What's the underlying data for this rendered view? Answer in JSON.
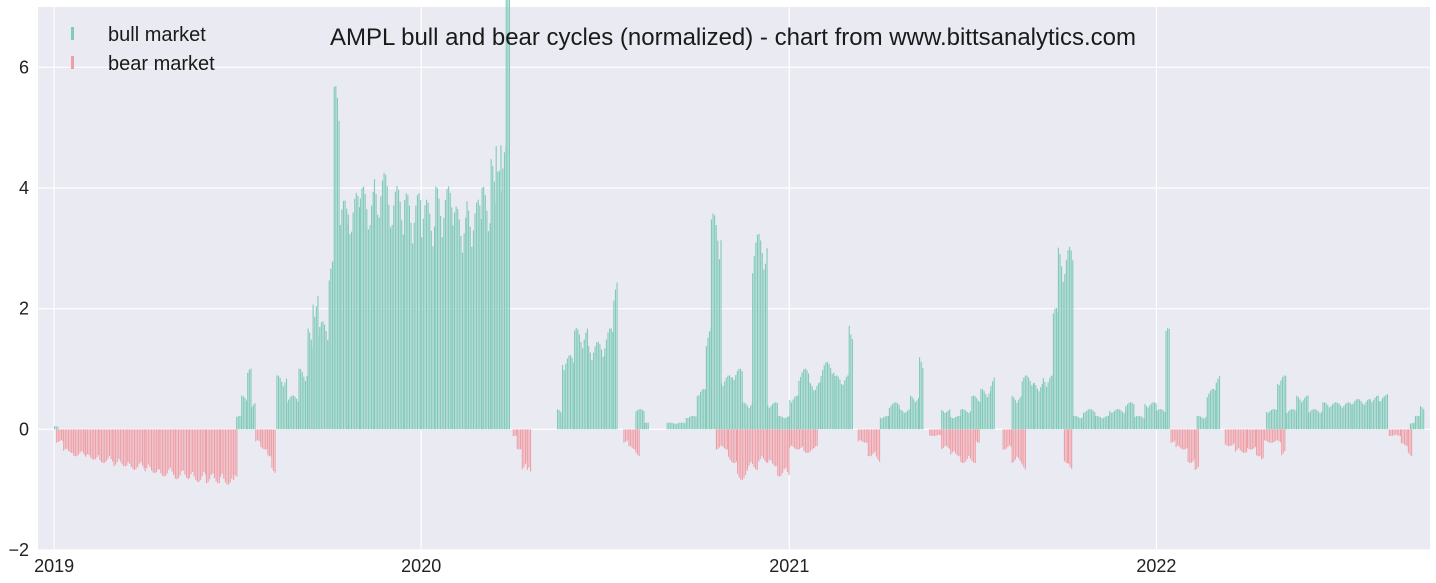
{
  "colors": {
    "bull": "#7fcab9",
    "bear": "#f09ea6",
    "plot_bg": "#eaeaf2",
    "grid": "#ffffff"
  },
  "chart_data": {
    "type": "bar",
    "title": "AMPL bull and bear cycles (normalized)  - chart from www.bittsanalytics.com",
    "xlabel": "",
    "ylabel": "",
    "ylim": [
      -2,
      7
    ],
    "xlim": [
      "2018-12-16",
      "2022-09-30"
    ],
    "yticks": [
      -2,
      0,
      2,
      4,
      6
    ],
    "xticks": [
      {
        "date": "2019-01-01",
        "label": "2019"
      },
      {
        "date": "2020-01-01",
        "label": "2020"
      },
      {
        "date": "2021-01-01",
        "label": "2021"
      },
      {
        "date": "2022-01-01",
        "label": "2022"
      }
    ],
    "grid": true,
    "legend_placement": "top-left",
    "series": [
      {
        "name": "bull market",
        "color": "#7fcab9",
        "points": [
          [
            "2019-01-01",
            0.05
          ],
          [
            "2019-07-01",
            0.2
          ],
          [
            "2019-07-06",
            0.5
          ],
          [
            "2019-07-12",
            0.9
          ],
          [
            "2019-07-16",
            0.4
          ],
          [
            "2019-08-10",
            0.8
          ],
          [
            "2019-08-20",
            0.5
          ],
          [
            "2019-09-01",
            0.9
          ],
          [
            "2019-09-10",
            1.5
          ],
          [
            "2019-09-15",
            2.1
          ],
          [
            "2019-09-20",
            1.6
          ],
          [
            "2019-10-01",
            2.5
          ],
          [
            "2019-10-06",
            5.1
          ],
          [
            "2019-10-12",
            3.4
          ],
          [
            "2019-10-20",
            3.5
          ],
          [
            "2019-11-01",
            3.6
          ],
          [
            "2019-11-15",
            3.8
          ],
          [
            "2019-12-01",
            3.6
          ],
          [
            "2019-12-15",
            3.5
          ],
          [
            "2020-01-01",
            3.4
          ],
          [
            "2020-01-15",
            3.6
          ],
          [
            "2020-02-01",
            3.3
          ],
          [
            "2020-02-15",
            3.4
          ],
          [
            "2020-03-01",
            3.6
          ],
          [
            "2020-03-10",
            4.0
          ],
          [
            "2020-03-15",
            4.6
          ],
          [
            "2020-03-20",
            4.2
          ],
          [
            "2020-03-25",
            6.5
          ],
          [
            "2020-05-15",
            0.3
          ],
          [
            "2020-05-20",
            1.1
          ],
          [
            "2020-06-01",
            1.5
          ],
          [
            "2020-06-15",
            1.3
          ],
          [
            "2020-07-01",
            1.5
          ],
          [
            "2020-07-10",
            2.2
          ],
          [
            "2020-08-01",
            0.3
          ],
          [
            "2020-08-10",
            0.1
          ],
          [
            "2020-09-01",
            0.1
          ],
          [
            "2020-09-20",
            0.2
          ],
          [
            "2020-10-01",
            0.6
          ],
          [
            "2020-10-10",
            1.5
          ],
          [
            "2020-10-15",
            3.2
          ],
          [
            "2020-10-25",
            0.8
          ],
          [
            "2020-11-05",
            0.9
          ],
          [
            "2020-11-15",
            0.4
          ],
          [
            "2020-11-25",
            2.9
          ],
          [
            "2020-12-10",
            0.4
          ],
          [
            "2020-12-20",
            0.2
          ],
          [
            "2021-01-01",
            0.5
          ],
          [
            "2021-01-10",
            0.9
          ],
          [
            "2021-01-20",
            0.7
          ],
          [
            "2021-02-01",
            1.0
          ],
          [
            "2021-02-15",
            0.8
          ],
          [
            "2021-03-01",
            1.65
          ],
          [
            "2021-04-01",
            0.2
          ],
          [
            "2021-04-10",
            0.4
          ],
          [
            "2021-04-20",
            0.3
          ],
          [
            "2021-05-01",
            0.5
          ],
          [
            "2021-05-10",
            1.1
          ],
          [
            "2021-06-01",
            0.3
          ],
          [
            "2021-06-10",
            0.2
          ],
          [
            "2021-06-20",
            0.3
          ],
          [
            "2021-07-01",
            0.5
          ],
          [
            "2021-07-10",
            0.6
          ],
          [
            "2021-07-20",
            0.8
          ],
          [
            "2021-08-10",
            0.5
          ],
          [
            "2021-08-20",
            0.8
          ],
          [
            "2021-09-01",
            0.7
          ],
          [
            "2021-09-10",
            0.8
          ],
          [
            "2021-09-20",
            1.8
          ],
          [
            "2021-09-25",
            2.7
          ],
          [
            "2021-10-10",
            0.2
          ],
          [
            "2021-10-20",
            0.3
          ],
          [
            "2021-11-01",
            0.2
          ],
          [
            "2021-11-15",
            0.3
          ],
          [
            "2021-12-01",
            0.4
          ],
          [
            "2021-12-10",
            0.2
          ],
          [
            "2021-12-20",
            0.4
          ],
          [
            "2022-01-01",
            0.3
          ],
          [
            "2022-01-10",
            1.5
          ],
          [
            "2022-02-10",
            0.2
          ],
          [
            "2022-02-20",
            0.6
          ],
          [
            "2022-03-01",
            0.8
          ],
          [
            "2022-04-20",
            0.3
          ],
          [
            "2022-05-01",
            0.8
          ],
          [
            "2022-05-10",
            0.3
          ],
          [
            "2022-05-20",
            0.5
          ],
          [
            "2022-06-01",
            0.3
          ],
          [
            "2022-06-15",
            0.4
          ],
          [
            "2022-07-01",
            0.4
          ],
          [
            "2022-07-15",
            0.45
          ],
          [
            "2022-08-01",
            0.5
          ],
          [
            "2022-08-10",
            0.5
          ],
          [
            "2022-08-15",
            0.52
          ],
          [
            "2022-09-10",
            0.1
          ],
          [
            "2022-09-15",
            0.2
          ],
          [
            "2022-09-20",
            0.35
          ]
        ]
      },
      {
        "name": "bear market",
        "color": "#f09ea6",
        "points": [
          [
            "2019-01-03",
            -0.2
          ],
          [
            "2019-01-10",
            -0.35
          ],
          [
            "2019-01-20",
            -0.4
          ],
          [
            "2019-02-01",
            -0.45
          ],
          [
            "2019-02-15",
            -0.5
          ],
          [
            "2019-03-01",
            -0.55
          ],
          [
            "2019-03-15",
            -0.6
          ],
          [
            "2019-04-01",
            -0.65
          ],
          [
            "2019-04-15",
            -0.7
          ],
          [
            "2019-05-01",
            -0.74
          ],
          [
            "2019-05-15",
            -0.78
          ],
          [
            "2019-06-01",
            -0.8
          ],
          [
            "2019-06-15",
            -0.82
          ],
          [
            "2019-06-28",
            -0.83
          ],
          [
            "2019-07-20",
            -0.2
          ],
          [
            "2019-07-25",
            -0.3
          ],
          [
            "2019-08-01",
            -0.4
          ],
          [
            "2019-08-05",
            -0.65
          ],
          [
            "2020-04-01",
            -0.1
          ],
          [
            "2020-04-05",
            -0.3
          ],
          [
            "2020-04-10",
            -0.6
          ],
          [
            "2020-04-15",
            -0.7
          ],
          [
            "2020-07-20",
            -0.2
          ],
          [
            "2020-07-25",
            -0.3
          ],
          [
            "2020-08-01",
            -0.4
          ],
          [
            "2020-10-20",
            -0.3
          ],
          [
            "2020-11-01",
            -0.5
          ],
          [
            "2020-11-10",
            -0.75
          ],
          [
            "2020-11-20",
            -0.6
          ],
          [
            "2020-12-01",
            -0.5
          ],
          [
            "2020-12-10",
            -0.55
          ],
          [
            "2020-12-20",
            -0.7
          ],
          [
            "2021-01-01",
            -0.3
          ],
          [
            "2021-01-15",
            -0.35
          ],
          [
            "2021-01-25",
            -0.3
          ],
          [
            "2021-03-10",
            -0.2
          ],
          [
            "2021-03-20",
            -0.4
          ],
          [
            "2021-03-28",
            -0.5
          ],
          [
            "2021-05-20",
            -0.1
          ],
          [
            "2021-06-01",
            -0.3
          ],
          [
            "2021-06-10",
            -0.4
          ],
          [
            "2021-06-20",
            -0.5
          ],
          [
            "2021-07-05",
            -0.2
          ],
          [
            "2021-08-01",
            -0.3
          ],
          [
            "2021-08-10",
            -0.5
          ],
          [
            "2021-08-20",
            -0.6
          ],
          [
            "2021-10-01",
            -0.5
          ],
          [
            "2021-10-05",
            -0.6
          ],
          [
            "2022-01-15",
            -0.2
          ],
          [
            "2022-01-20",
            -0.3
          ],
          [
            "2022-02-01",
            -0.5
          ],
          [
            "2022-02-08",
            -0.6
          ],
          [
            "2022-03-10",
            -0.25
          ],
          [
            "2022-03-20",
            -0.35
          ],
          [
            "2022-04-01",
            -0.3
          ],
          [
            "2022-04-10",
            -0.4
          ],
          [
            "2022-04-15",
            -0.45
          ],
          [
            "2022-04-18",
            -0.2
          ],
          [
            "2022-05-05",
            -0.4
          ],
          [
            "2022-08-20",
            -0.1
          ],
          [
            "2022-09-01",
            -0.25
          ],
          [
            "2022-09-08",
            -0.4
          ]
        ]
      }
    ]
  }
}
